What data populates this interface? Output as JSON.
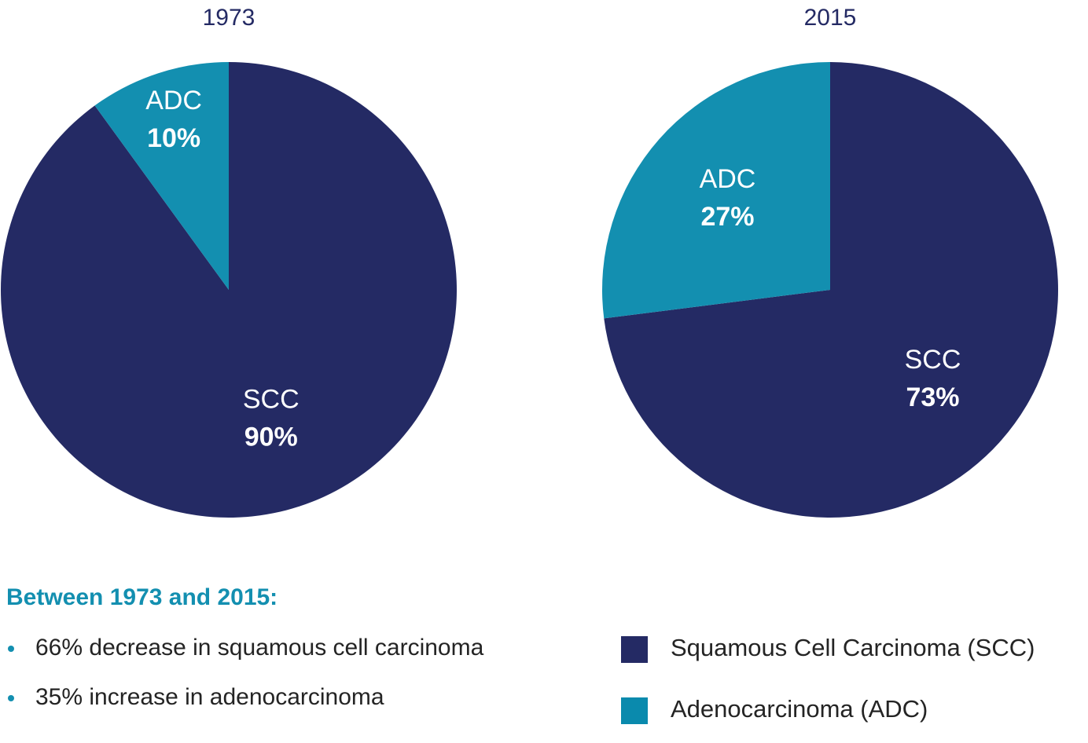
{
  "chart_data": [
    {
      "type": "pie",
      "title": "1973",
      "categories": [
        "SCC",
        "ADC"
      ],
      "values": [
        90,
        10
      ],
      "value_labels": [
        "90%",
        "10%"
      ],
      "colors": [
        "#242a64",
        "#138fb0"
      ]
    },
    {
      "type": "pie",
      "title": "2015",
      "categories": [
        "SCC",
        "ADC"
      ],
      "values": [
        73,
        27
      ],
      "value_labels": [
        "73%",
        "27%"
      ],
      "colors": [
        "#242a64",
        "#138fb0"
      ]
    }
  ],
  "legend": {
    "items": [
      {
        "name": "Squamous Cell Carcinoma (SCC)",
        "color": "#242a64"
      },
      {
        "name": "Adenocarcinoma (ADC)",
        "color": "#0a8aad"
      }
    ]
  },
  "notes": {
    "heading": "Between 1973 and 2015:",
    "bullets": [
      "66% decrease in squamous cell carcinoma",
      "35% increase in adenocarcinoma"
    ]
  }
}
